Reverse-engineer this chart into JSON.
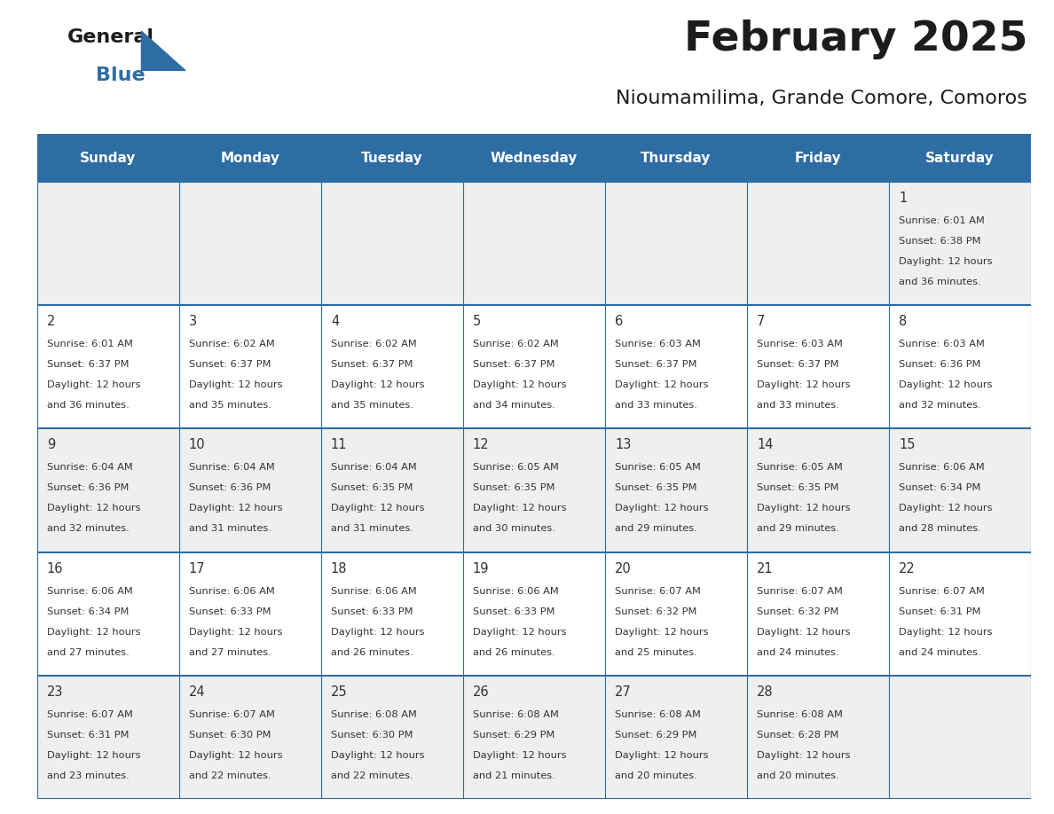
{
  "title": "February 2025",
  "subtitle": "Nioumamilima, Grande Comore, Comoros",
  "header_bg_color": "#2E6DA4",
  "header_text_color": "#FFFFFF",
  "row_bg_colors": [
    "#EFEFEF",
    "#FFFFFF",
    "#EFEFEF",
    "#FFFFFF",
    "#EFEFEF"
  ],
  "text_color": "#333333",
  "day_number_color": "#333333",
  "border_color": "#2E6DA4",
  "days_of_week": [
    "Sunday",
    "Monday",
    "Tuesday",
    "Wednesday",
    "Thursday",
    "Friday",
    "Saturday"
  ],
  "calendar": [
    [
      null,
      null,
      null,
      null,
      null,
      null,
      1
    ],
    [
      2,
      3,
      4,
      5,
      6,
      7,
      8
    ],
    [
      9,
      10,
      11,
      12,
      13,
      14,
      15
    ],
    [
      16,
      17,
      18,
      19,
      20,
      21,
      22
    ],
    [
      23,
      24,
      25,
      26,
      27,
      28,
      null
    ]
  ],
  "cell_data": {
    "1": {
      "sunrise": "6:01 AM",
      "sunset": "6:38 PM",
      "daylight_hours": 12,
      "daylight_minutes": 36
    },
    "2": {
      "sunrise": "6:01 AM",
      "sunset": "6:37 PM",
      "daylight_hours": 12,
      "daylight_minutes": 36
    },
    "3": {
      "sunrise": "6:02 AM",
      "sunset": "6:37 PM",
      "daylight_hours": 12,
      "daylight_minutes": 35
    },
    "4": {
      "sunrise": "6:02 AM",
      "sunset": "6:37 PM",
      "daylight_hours": 12,
      "daylight_minutes": 35
    },
    "5": {
      "sunrise": "6:02 AM",
      "sunset": "6:37 PM",
      "daylight_hours": 12,
      "daylight_minutes": 34
    },
    "6": {
      "sunrise": "6:03 AM",
      "sunset": "6:37 PM",
      "daylight_hours": 12,
      "daylight_minutes": 33
    },
    "7": {
      "sunrise": "6:03 AM",
      "sunset": "6:37 PM",
      "daylight_hours": 12,
      "daylight_minutes": 33
    },
    "8": {
      "sunrise": "6:03 AM",
      "sunset": "6:36 PM",
      "daylight_hours": 12,
      "daylight_minutes": 32
    },
    "9": {
      "sunrise": "6:04 AM",
      "sunset": "6:36 PM",
      "daylight_hours": 12,
      "daylight_minutes": 32
    },
    "10": {
      "sunrise": "6:04 AM",
      "sunset": "6:36 PM",
      "daylight_hours": 12,
      "daylight_minutes": 31
    },
    "11": {
      "sunrise": "6:04 AM",
      "sunset": "6:35 PM",
      "daylight_hours": 12,
      "daylight_minutes": 31
    },
    "12": {
      "sunrise": "6:05 AM",
      "sunset": "6:35 PM",
      "daylight_hours": 12,
      "daylight_minutes": 30
    },
    "13": {
      "sunrise": "6:05 AM",
      "sunset": "6:35 PM",
      "daylight_hours": 12,
      "daylight_minutes": 29
    },
    "14": {
      "sunrise": "6:05 AM",
      "sunset": "6:35 PM",
      "daylight_hours": 12,
      "daylight_minutes": 29
    },
    "15": {
      "sunrise": "6:06 AM",
      "sunset": "6:34 PM",
      "daylight_hours": 12,
      "daylight_minutes": 28
    },
    "16": {
      "sunrise": "6:06 AM",
      "sunset": "6:34 PM",
      "daylight_hours": 12,
      "daylight_minutes": 27
    },
    "17": {
      "sunrise": "6:06 AM",
      "sunset": "6:33 PM",
      "daylight_hours": 12,
      "daylight_minutes": 27
    },
    "18": {
      "sunrise": "6:06 AM",
      "sunset": "6:33 PM",
      "daylight_hours": 12,
      "daylight_minutes": 26
    },
    "19": {
      "sunrise": "6:06 AM",
      "sunset": "6:33 PM",
      "daylight_hours": 12,
      "daylight_minutes": 26
    },
    "20": {
      "sunrise": "6:07 AM",
      "sunset": "6:32 PM",
      "daylight_hours": 12,
      "daylight_minutes": 25
    },
    "21": {
      "sunrise": "6:07 AM",
      "sunset": "6:32 PM",
      "daylight_hours": 12,
      "daylight_minutes": 24
    },
    "22": {
      "sunrise": "6:07 AM",
      "sunset": "6:31 PM",
      "daylight_hours": 12,
      "daylight_minutes": 24
    },
    "23": {
      "sunrise": "6:07 AM",
      "sunset": "6:31 PM",
      "daylight_hours": 12,
      "daylight_minutes": 23
    },
    "24": {
      "sunrise": "6:07 AM",
      "sunset": "6:30 PM",
      "daylight_hours": 12,
      "daylight_minutes": 22
    },
    "25": {
      "sunrise": "6:08 AM",
      "sunset": "6:30 PM",
      "daylight_hours": 12,
      "daylight_minutes": 22
    },
    "26": {
      "sunrise": "6:08 AM",
      "sunset": "6:29 PM",
      "daylight_hours": 12,
      "daylight_minutes": 21
    },
    "27": {
      "sunrise": "6:08 AM",
      "sunset": "6:29 PM",
      "daylight_hours": 12,
      "daylight_minutes": 20
    },
    "28": {
      "sunrise": "6:08 AM",
      "sunset": "6:28 PM",
      "daylight_hours": 12,
      "daylight_minutes": 20
    }
  },
  "fig_width": 11.88,
  "fig_height": 9.18
}
